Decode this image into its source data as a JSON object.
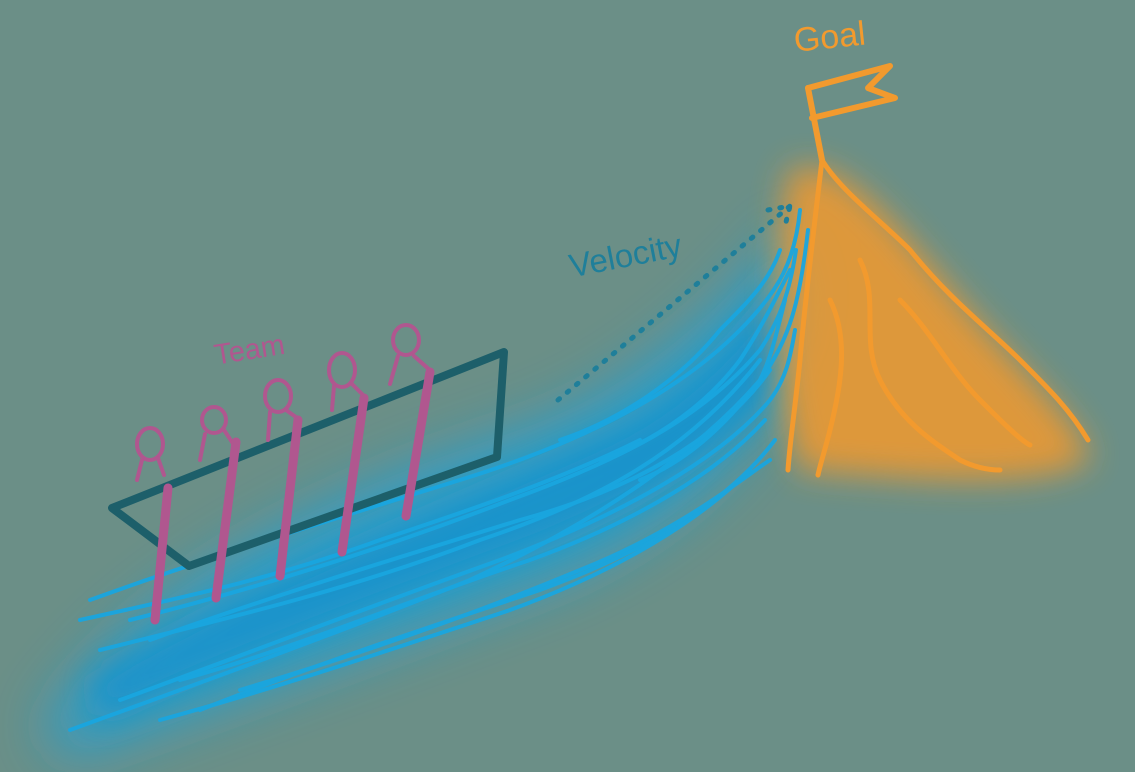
{
  "labels": {
    "goal": "Goal",
    "velocity": "Velocity",
    "team": "Team"
  },
  "colors": {
    "background": "#6b8f87",
    "goal": "#f29a2e",
    "velocity": "#1f7f9a",
    "team": "#b0578f",
    "water": "#1aa3dc",
    "boat": "#1d5f6a"
  }
}
